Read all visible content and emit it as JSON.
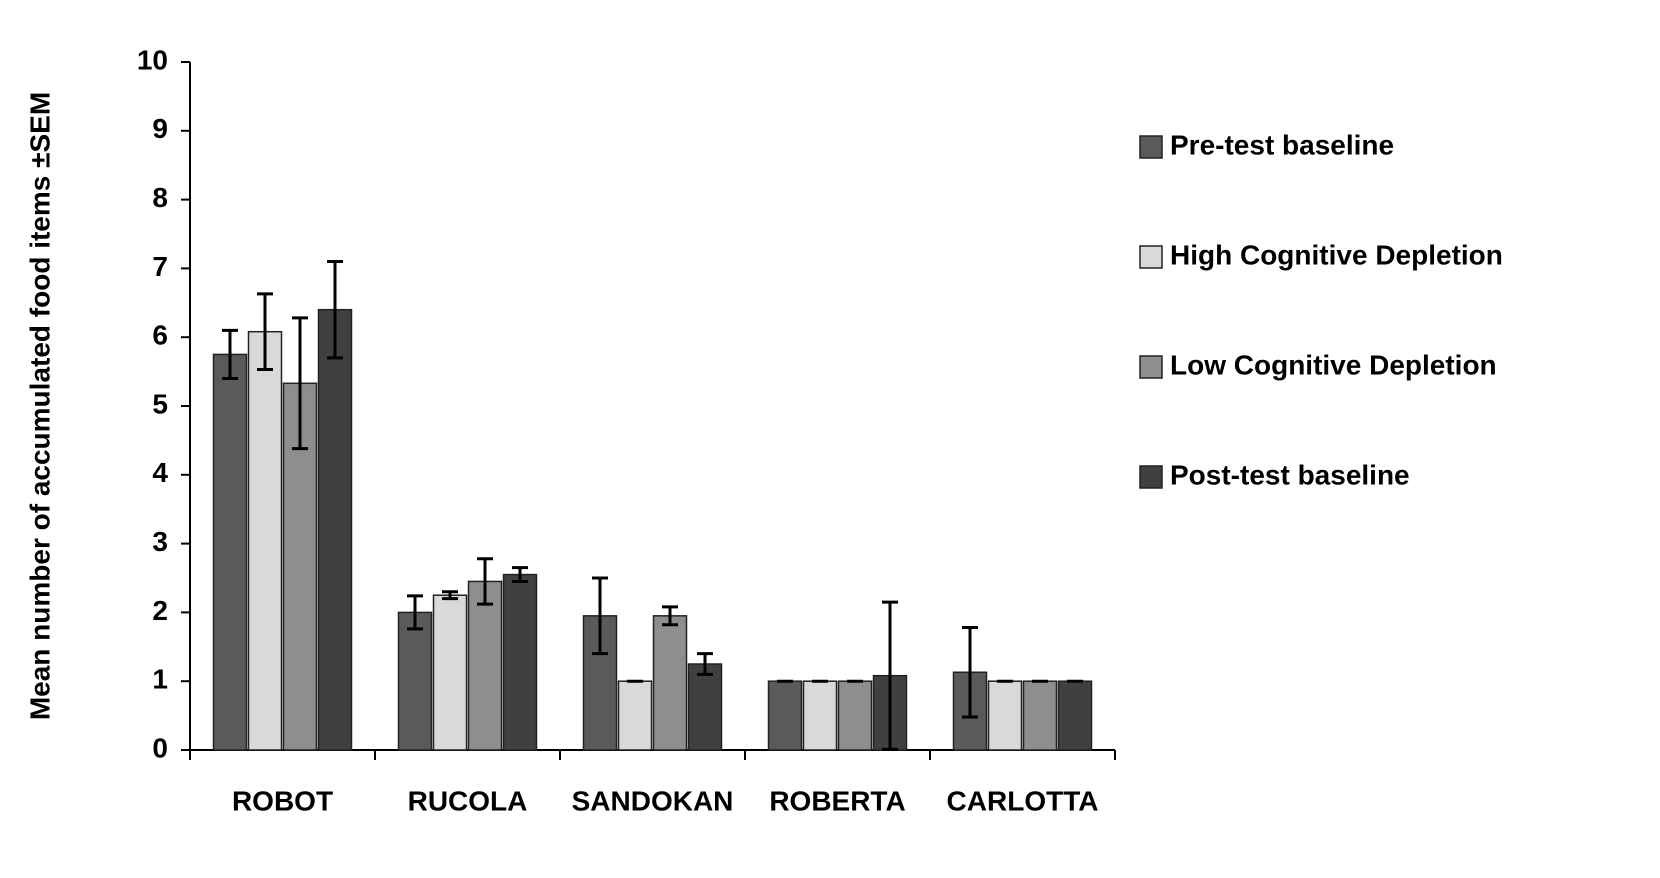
{
  "chart_data": {
    "type": "bar",
    "y_label": "Mean number of accumulated food items ±SEM",
    "categories": [
      "ROBOT",
      "RUCOLA",
      "SANDOKAN",
      "ROBERTA",
      "CARLOTTA"
    ],
    "series": [
      {
        "name": "Pre-test baseline",
        "color": "#5a5a5a",
        "values": [
          5.75,
          2.0,
          1.95,
          1.0,
          1.13
        ],
        "errors": [
          0.35,
          0.24,
          0.55,
          0.0,
          0.65
        ]
      },
      {
        "name": "High Cognitive Depletion",
        "color": "#d9d9d9",
        "values": [
          6.08,
          2.25,
          1.0,
          1.0,
          1.0
        ],
        "errors": [
          0.55,
          0.05,
          0.0,
          0.0,
          0.0
        ]
      },
      {
        "name": "Low Cognitive Depletion",
        "color": "#8e8e8e",
        "values": [
          5.33,
          2.45,
          1.95,
          1.0,
          1.0
        ],
        "errors": [
          0.95,
          0.33,
          0.13,
          0.0,
          0.0
        ]
      },
      {
        "name": "Post-test baseline",
        "color": "#404040",
        "values": [
          6.4,
          2.55,
          1.25,
          1.08,
          1.0
        ],
        "errors": [
          0.7,
          0.1,
          0.15,
          1.07,
          0.0
        ]
      }
    ],
    "ylim": [
      0,
      10
    ],
    "yticks": [
      0,
      1,
      2,
      3,
      4,
      5,
      6,
      7,
      8,
      9,
      10
    ],
    "grid": false,
    "legend": "right"
  }
}
